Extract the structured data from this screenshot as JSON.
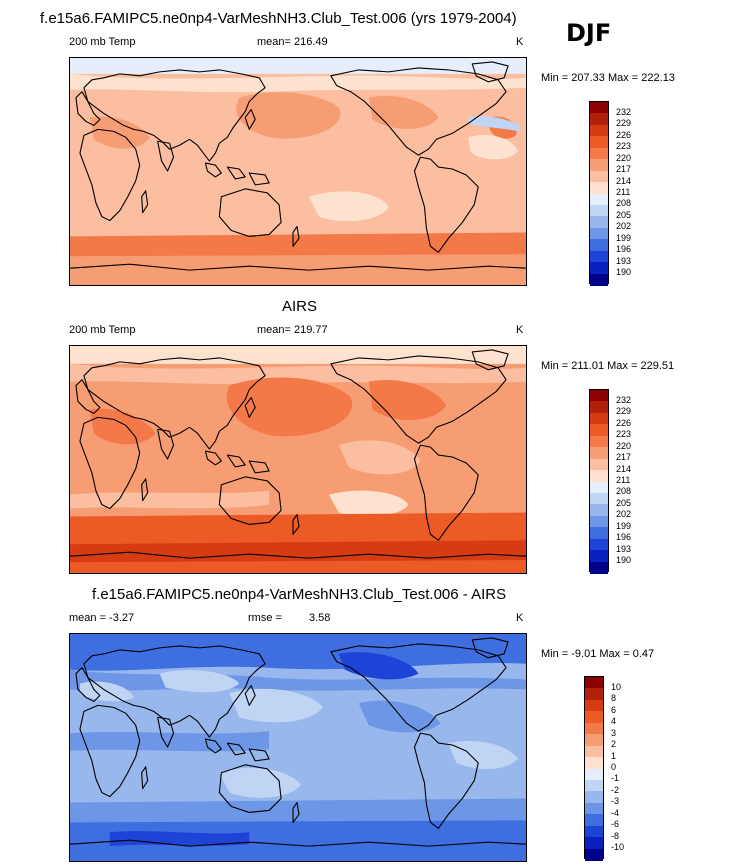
{
  "header": {
    "title": "f.e15a6.FAMIPC5.ne0np4-VarMeshNH3.Club_Test.006 (yrs 1979-2004)",
    "season": "DJF"
  },
  "panels": [
    {
      "title": "",
      "left_label": "200 mb Temp",
      "center_label": "mean= 216.49",
      "center_label2": "",
      "units": "K",
      "min_max": "Min = 207.33 Max = 222.13",
      "scheme": "abs1"
    },
    {
      "title": "AIRS",
      "left_label": "200 mb Temp",
      "center_label": "mean= 219.77",
      "center_label2": "",
      "units": "K",
      "min_max": "Min = 211.01 Max = 229.51",
      "scheme": "abs2"
    },
    {
      "title": "f.e15a6.FAMIPC5.ne0np4-VarMeshNH3.Club_Test.006 - AIRS",
      "left_label": "mean =  -3.27",
      "center_label": "rmse =",
      "center_label2": "3.58",
      "units": "K",
      "min_max": "Min =  -9.01 Max =   0.47",
      "scheme": "diff"
    }
  ],
  "legend_abs": {
    "labels": [
      "232",
      "229",
      "226",
      "223",
      "220",
      "217",
      "214",
      "211",
      "208",
      "205",
      "202",
      "199",
      "196",
      "193",
      "190"
    ],
    "colors": [
      "#8b0000",
      "#b0200b",
      "#d63b12",
      "#ec5a26",
      "#f37a48",
      "#f79d74",
      "#fbbea1",
      "#fde3cf",
      "#e6eefb",
      "#c0d4f4",
      "#98b7ed",
      "#6d97e6",
      "#3e6ee0",
      "#1d44d6",
      "#0a21c2",
      "#00008b"
    ]
  },
  "legend_diff": {
    "labels": [
      "10",
      "8",
      "6",
      "4",
      "3",
      "2",
      "1",
      "0",
      "-1",
      "-2",
      "-3",
      "-4",
      "-6",
      "-8",
      "-10"
    ],
    "colors": [
      "#8b0000",
      "#b0200b",
      "#d63b12",
      "#ec5a26",
      "#f37a48",
      "#f79d74",
      "#fbbea1",
      "#fde3cf",
      "#e6eefb",
      "#c0d4f4",
      "#98b7ed",
      "#6d97e6",
      "#3e6ee0",
      "#1d44d6",
      "#0a21c2",
      "#00008b"
    ]
  }
}
